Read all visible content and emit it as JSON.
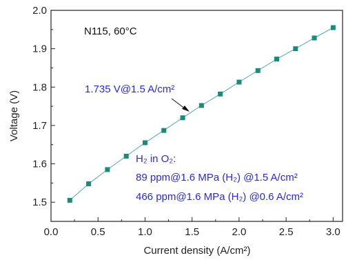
{
  "chart_data": {
    "type": "line",
    "xlabel": "Current density (A/cm²)",
    "ylabel": "Voltage (V)",
    "xlim": [
      0.0,
      3.1
    ],
    "ylim": [
      1.45,
      2.0
    ],
    "xticks": [
      "0.0",
      "0.5",
      "1.0",
      "1.5",
      "2.0",
      "2.5",
      "3.0"
    ],
    "yticks": [
      "1.5",
      "1.6",
      "1.7",
      "1.8",
      "1.9",
      "2.0"
    ],
    "grid": false,
    "series": [
      {
        "x": [
          0.2,
          0.4,
          0.6,
          0.8,
          1.0,
          1.2,
          1.4,
          1.6,
          1.8,
          2.0,
          2.2,
          2.4,
          2.6,
          2.8,
          3.0
        ],
        "values": [
          1.505,
          1.548,
          1.585,
          1.62,
          1.655,
          1.687,
          1.72,
          1.752,
          1.782,
          1.813,
          1.843,
          1.873,
          1.9,
          1.928,
          1.955
        ]
      }
    ],
    "annotations": {
      "condition": "N115, 60°C",
      "point_label": "1.735 V@1.5 A/cm²",
      "h2_title": "H₂ in O₂:",
      "h2_line1": "89 ppm@1.6 MPa (H₂) @1.5 A/cm²",
      "h2_line2": "466 ppm@1.6 MPa (H₂) @0.6 A/cm²"
    },
    "colors": {
      "marker": "#1a8a7a",
      "line": "#4fa8b8",
      "annotation": "#2a2ad8"
    }
  }
}
